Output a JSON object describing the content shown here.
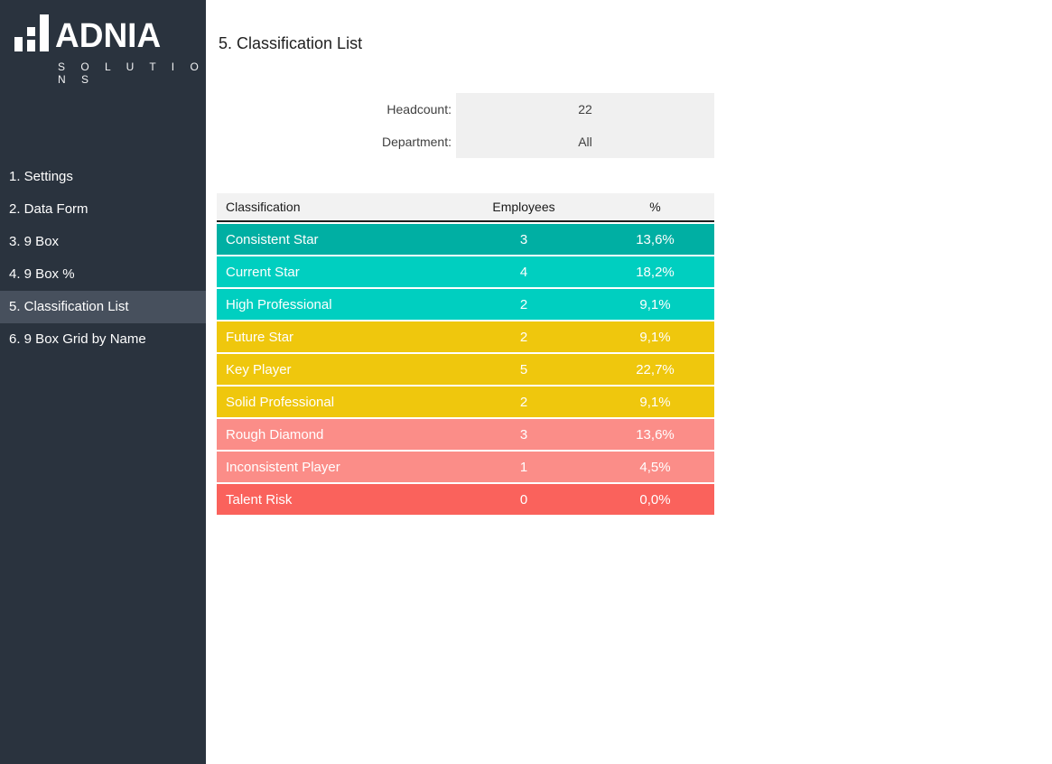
{
  "colors": {
    "sidebar_bg": "#2A333E",
    "nav_active_bg": "#47505D",
    "teal_dark": "#00AFA3",
    "teal_light": "#00CFC0",
    "yellow": "#EFC70D",
    "salmon": "#FB8D88",
    "red": "#FA625C",
    "header_gray": "#F2F2F2",
    "filter_gray": "#F0F0F0"
  },
  "sidebar": {
    "logo": {
      "name": "ADNIA",
      "subtitle": "S O L U T I O N S"
    },
    "items": [
      {
        "label": "1. Settings",
        "active": false
      },
      {
        "label": "2. Data Form",
        "active": false
      },
      {
        "label": "3. 9 Box",
        "active": false
      },
      {
        "label": "4. 9 Box %",
        "active": false
      },
      {
        "label": "5. Classification List",
        "active": true
      },
      {
        "label": "6. 9 Box Grid by Name",
        "active": false
      }
    ]
  },
  "main": {
    "title": "5. Classification List",
    "filters": [
      {
        "label": "Headcount:",
        "value": "22"
      },
      {
        "label": "Department:",
        "value": "All"
      }
    ],
    "table": {
      "headers": [
        "Classification",
        "Employees",
        "%"
      ],
      "rows": [
        {
          "classification": "Consistent Star",
          "employees": "3",
          "percent": "13,6%",
          "color": "#00AFA3"
        },
        {
          "classification": "Current Star",
          "employees": "4",
          "percent": "18,2%",
          "color": "#00CFC0"
        },
        {
          "classification": "High Professional",
          "employees": "2",
          "percent": "9,1%",
          "color": "#00CFC0"
        },
        {
          "classification": "Future Star",
          "employees": "2",
          "percent": "9,1%",
          "color": "#EFC70D"
        },
        {
          "classification": "Key Player",
          "employees": "5",
          "percent": "22,7%",
          "color": "#EFC70D"
        },
        {
          "classification": "Solid Professional",
          "employees": "2",
          "percent": "9,1%",
          "color": "#EFC70D"
        },
        {
          "classification": "Rough Diamond",
          "employees": "3",
          "percent": "13,6%",
          "color": "#FB8D88"
        },
        {
          "classification": "Inconsistent Player",
          "employees": "1",
          "percent": "4,5%",
          "color": "#FB8D88"
        },
        {
          "classification": "Talent Risk",
          "employees": "0",
          "percent": "0,0%",
          "color": "#FA625C"
        }
      ]
    }
  }
}
